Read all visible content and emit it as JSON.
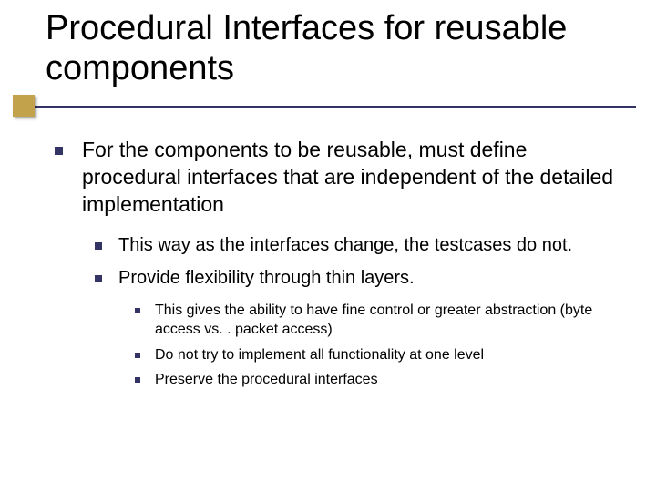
{
  "colors": {
    "bullet": "#333366",
    "accent_square": "#c2a24a",
    "rule": "#333366",
    "text": "#000000",
    "background": "#ffffff"
  },
  "fonts": {
    "title_size_pt": 38,
    "lvl1_size_pt": 23,
    "lvl2_size_pt": 20,
    "lvl3_size_pt": 16,
    "family": "Verdana"
  },
  "title": "Procedural Interfaces for reusable components",
  "bullets": {
    "lvl1_0": "For the components to be reusable, must define procedural interfaces that are independent of the detailed implementation",
    "lvl2_0": "This way as the interfaces change, the testcases do not.",
    "lvl2_1": "Provide flexibility through thin layers.",
    "lvl3_0": "This gives the ability to have fine control or greater abstraction (byte access vs. . packet access)",
    "lvl3_1": "Do not try to implement all functionality at one level",
    "lvl3_2": "Preserve the procedural interfaces"
  }
}
